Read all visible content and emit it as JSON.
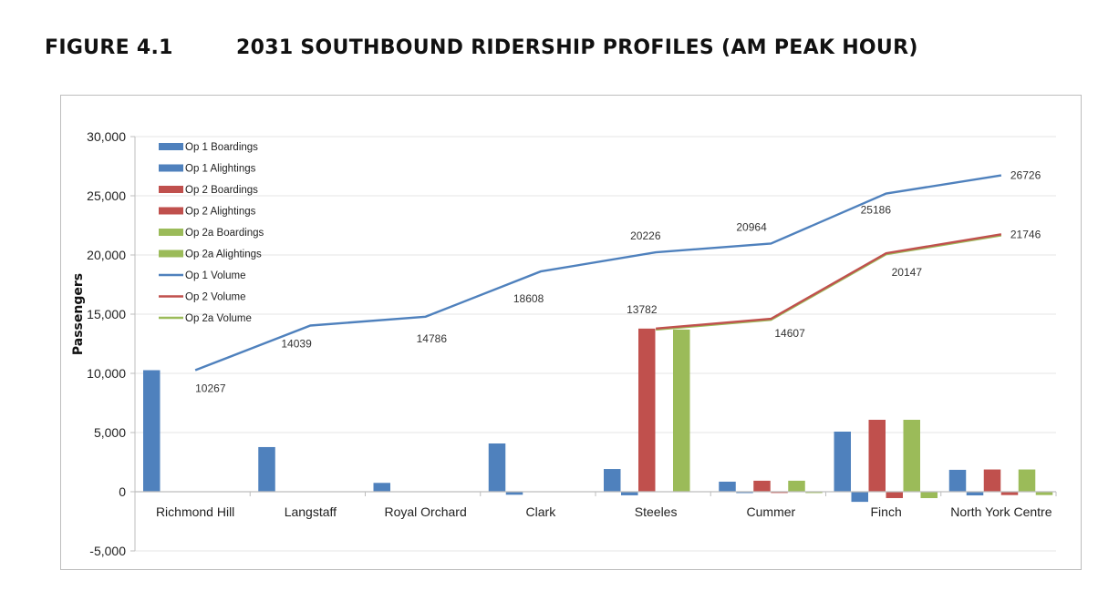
{
  "figure": {
    "number": "FIGURE 4.1",
    "title": "2031 SOUTHBOUND RIDERSHIP PROFILES (AM PEAK HOUR)"
  },
  "colors": {
    "op1": "#4f81bd",
    "op2": "#c0504d",
    "op2a": "#9bbb59"
  },
  "chart_data": {
    "type": "bar",
    "title": "2031 SOUTHBOUND RIDERSHIP PROFILES (AM PEAK HOUR)",
    "xlabel": "",
    "ylabel": "Passengers",
    "ylim": [
      -5000,
      30000
    ],
    "yticks": [
      -5000,
      0,
      5000,
      10000,
      15000,
      20000,
      25000,
      30000
    ],
    "ytick_labels": [
      "-5,000",
      "0",
      "5,000",
      "10,000",
      "15,000",
      "20,000",
      "25,000",
      "30,000"
    ],
    "grid": true,
    "legend_position": "upper-left inside",
    "categories": [
      "Richmond Hill",
      "Langstaff",
      "Royal Orchard",
      "Clark",
      "Steeles",
      "Cummer",
      "Finch",
      "North York Centre"
    ],
    "series": [
      {
        "name": "Op 1 Boardings",
        "type": "bar",
        "color": "#4f81bd",
        "values": [
          10267,
          3772,
          747,
          4077,
          1920,
          850,
          5077,
          1850
        ]
      },
      {
        "name": "Op 1 Alightings",
        "type": "bar",
        "color": "#4f81bd",
        "values": [
          0,
          0,
          0,
          -255,
          -302,
          -112,
          -855,
          -310
        ]
      },
      {
        "name": "Op 2 Boardings",
        "type": "bar",
        "color": "#c0504d",
        "values": [
          0,
          0,
          0,
          0,
          13782,
          930,
          6077,
          1880
        ]
      },
      {
        "name": "Op 2 Alightings",
        "type": "bar",
        "color": "#c0504d",
        "values": [
          0,
          0,
          0,
          0,
          0,
          -105,
          -537,
          -281
        ]
      },
      {
        "name": "Op 2a Boardings",
        "type": "bar",
        "color": "#9bbb59",
        "values": [
          0,
          0,
          0,
          0,
          13700,
          930,
          6077,
          1880
        ]
      },
      {
        "name": "Op 2a Alightings",
        "type": "bar",
        "color": "#9bbb59",
        "values": [
          0,
          0,
          0,
          0,
          0,
          -110,
          -540,
          -281
        ]
      },
      {
        "name": "Op 1 Volume",
        "type": "line",
        "color": "#4f81bd",
        "values": [
          10267,
          14039,
          14786,
          18608,
          20226,
          20964,
          25186,
          26726
        ]
      },
      {
        "name": "Op 2 Volume",
        "type": "line",
        "color": "#c0504d",
        "values": [
          null,
          null,
          null,
          null,
          13782,
          14607,
          20147,
          21746
        ]
      },
      {
        "name": "Op 2a Volume",
        "type": "line",
        "color": "#9bbb59",
        "values": [
          null,
          null,
          null,
          null,
          13700,
          14520,
          20060,
          21660
        ]
      }
    ],
    "data_labels": {
      "op1_volume": [
        "10267",
        "14039",
        "14786",
        "18608",
        "20226",
        "20964",
        "25186",
        "26726"
      ],
      "op2_volume": [
        "13782",
        "14607",
        "20147",
        "21746"
      ]
    }
  },
  "legend": [
    {
      "label": "Op 1 Boardings",
      "kind": "bar",
      "color": "#4f81bd"
    },
    {
      "label": "Op 1 Alightings",
      "kind": "bar",
      "color": "#4f81bd"
    },
    {
      "label": "Op 2 Boardings",
      "kind": "bar",
      "color": "#c0504d"
    },
    {
      "label": "Op 2 Alightings",
      "kind": "bar",
      "color": "#c0504d"
    },
    {
      "label": "Op 2a Boardings",
      "kind": "bar",
      "color": "#9bbb59"
    },
    {
      "label": "Op 2a Alightings",
      "kind": "bar",
      "color": "#9bbb59"
    },
    {
      "label": "Op 1 Volume",
      "kind": "line",
      "color": "#4f81bd"
    },
    {
      "label": "Op 2 Volume",
      "kind": "line",
      "color": "#c0504d"
    },
    {
      "label": "Op 2a Volume",
      "kind": "line",
      "color": "#9bbb59"
    }
  ]
}
